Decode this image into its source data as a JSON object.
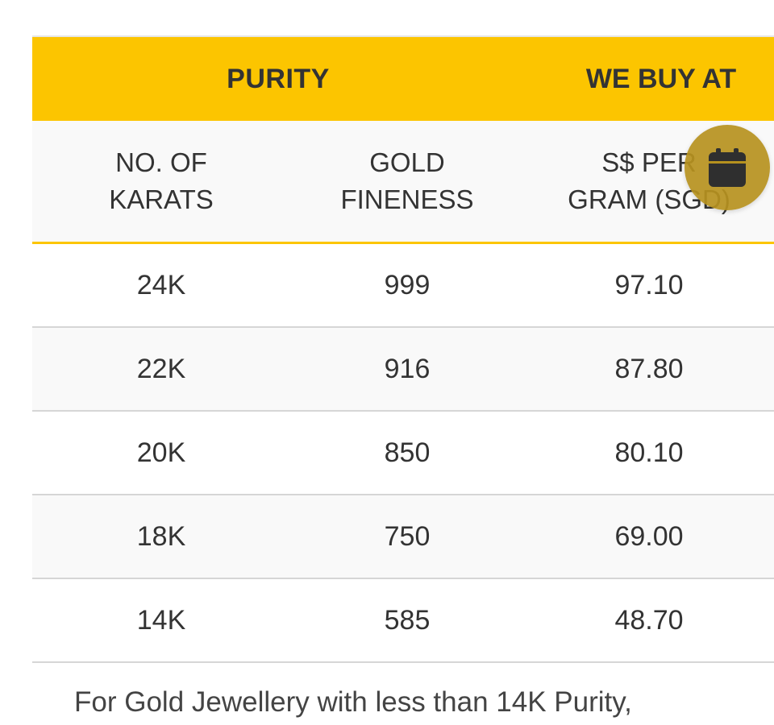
{
  "table": {
    "group_headers": {
      "purity": "PURITY",
      "we_buy_at": "WE BUY AT"
    },
    "sub_headers": [
      "NO. OF\nKARATS",
      "GOLD\nFINENESS",
      "S$ PER\nGRAM (SGD)"
    ],
    "rows": [
      [
        "24K",
        "999",
        "97.10"
      ],
      [
        "22K",
        "916",
        "87.80"
      ],
      [
        "20K",
        "850",
        "80.10"
      ],
      [
        "18K",
        "750",
        "69.00"
      ],
      [
        "14K",
        "585",
        "48.70"
      ]
    ]
  },
  "fab": {
    "icon": "calendar-icon",
    "color": "#b6911e"
  },
  "footer": {
    "text": "For Gold Jewellery with less than 14K Purity,"
  },
  "colors": {
    "header_yellow": "#fcc500",
    "text": "#333333"
  }
}
